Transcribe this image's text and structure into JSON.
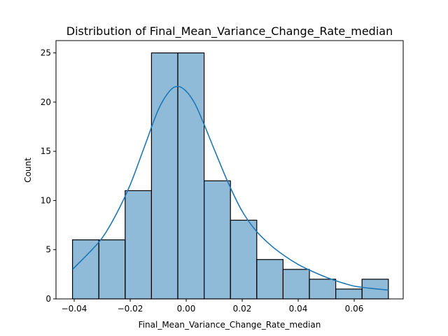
{
  "chart_data": {
    "type": "bar",
    "title": "Distribution of Final_Mean_Variance_Change_Rate_median",
    "xlabel": "Final_Mean_Variance_Change_Rate_median",
    "ylabel": "Count",
    "xlim": [
      -0.0465,
      0.0775
    ],
    "ylim": [
      0,
      26.25
    ],
    "x_ticks": [
      -0.04,
      -0.02,
      0.0,
      0.02,
      0.04,
      0.06
    ],
    "x_tick_labels": [
      "−0.04",
      "−0.02",
      "0.00",
      "0.02",
      "0.04",
      "0.06"
    ],
    "y_ticks": [
      0,
      5,
      10,
      15,
      20,
      25
    ],
    "y_tick_labels": [
      "0",
      "5",
      "10",
      "15",
      "20",
      "25"
    ],
    "grid": false,
    "bin_edges": [
      -0.0406,
      -0.0312,
      -0.0218,
      -0.0124,
      -0.003,
      0.0064,
      0.0158,
      0.0252,
      0.0346,
      0.044,
      0.0534,
      0.0628,
      0.0722
    ],
    "values": [
      6,
      6,
      11,
      25,
      25,
      12,
      8,
      4,
      3,
      2,
      1,
      2
    ],
    "kde": {
      "x": [
        -0.0406,
        -0.035,
        -0.03,
        -0.025,
        -0.02,
        -0.015,
        -0.01,
        -0.006,
        -0.003,
        0.0,
        0.003,
        0.006,
        0.01,
        0.015,
        0.02,
        0.025,
        0.03,
        0.035,
        0.04,
        0.045,
        0.05,
        0.055,
        0.06,
        0.065,
        0.0722
      ],
      "y": [
        3.0,
        4.6,
        6.2,
        8.6,
        11.6,
        15.4,
        19.2,
        21.1,
        21.6,
        21.1,
        19.9,
        18.0,
        15.2,
        11.8,
        8.9,
        6.9,
        5.5,
        4.4,
        3.5,
        2.8,
        2.2,
        1.7,
        1.3,
        1.1,
        0.9
      ]
    }
  }
}
